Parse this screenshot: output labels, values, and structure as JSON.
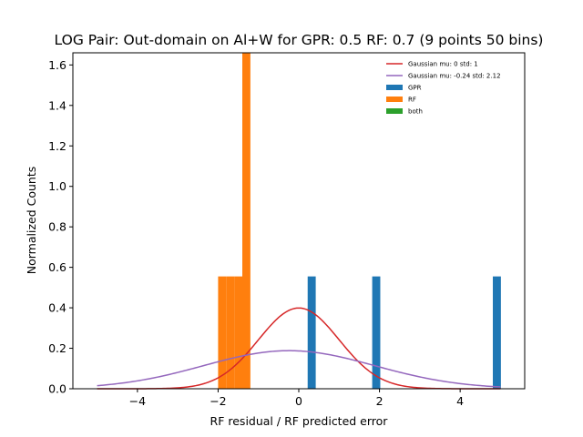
{
  "chart_data": {
    "type": "histogram",
    "title": "LOG Pair: Out-domain on Al+W for GPR: 0.5 RF: 0.7 (9 points 50 bins)",
    "xlabel": "RF residual / RF predicted error",
    "ylabel": "Normalized Counts",
    "xlim": [
      -5.6,
      5.6
    ],
    "ylim": [
      0,
      1.66
    ],
    "xticks": [
      -4,
      -2,
      0,
      2,
      4
    ],
    "xtick_labels": [
      "−4",
      "−2",
      "0",
      "2",
      "4"
    ],
    "yticks": [
      0.0,
      0.2,
      0.4,
      0.6,
      0.8,
      1.0,
      1.2,
      1.4,
      1.6
    ],
    "ytick_labels": [
      "0.0",
      "0.2",
      "0.4",
      "0.6",
      "0.8",
      "1.0",
      "1.2",
      "1.4",
      "1.6"
    ],
    "grid": false,
    "legend_position": "top-right",
    "legend_entries": [
      "Gaussian mu: 0 std: 1",
      "Gaussian mu: -0.24 std: 2.12",
      "GPR",
      "RF",
      "both"
    ],
    "colors": {
      "gaussian_standard": "#d62728",
      "gaussian_fit": "#9467bd",
      "gpr": "#1f77b4",
      "rf": "#ff7f0e",
      "both": "#2ca02c"
    },
    "gaussians": [
      {
        "mu": 0,
        "std": 1,
        "x_range": [
          -5,
          5
        ]
      },
      {
        "mu": -0.24,
        "std": 2.12,
        "x_range": [
          -5,
          5
        ]
      }
    ],
    "gpr_bars": [
      {
        "x0": 0.22,
        "x1": 0.42,
        "value": 0.555
      },
      {
        "x0": 1.82,
        "x1": 2.02,
        "value": 0.555
      },
      {
        "x0": 4.81,
        "x1": 5.01,
        "value": 0.555
      }
    ],
    "rf_bars": [
      {
        "x0": -2.0,
        "x1": -1.8,
        "value": 0.555
      },
      {
        "x0": -1.8,
        "x1": -1.6,
        "value": 0.555
      },
      {
        "x0": -1.6,
        "x1": -1.4,
        "value": 0.555
      },
      {
        "x0": -1.4,
        "x1": -1.2,
        "value": 1.66
      }
    ],
    "both_bars": []
  }
}
